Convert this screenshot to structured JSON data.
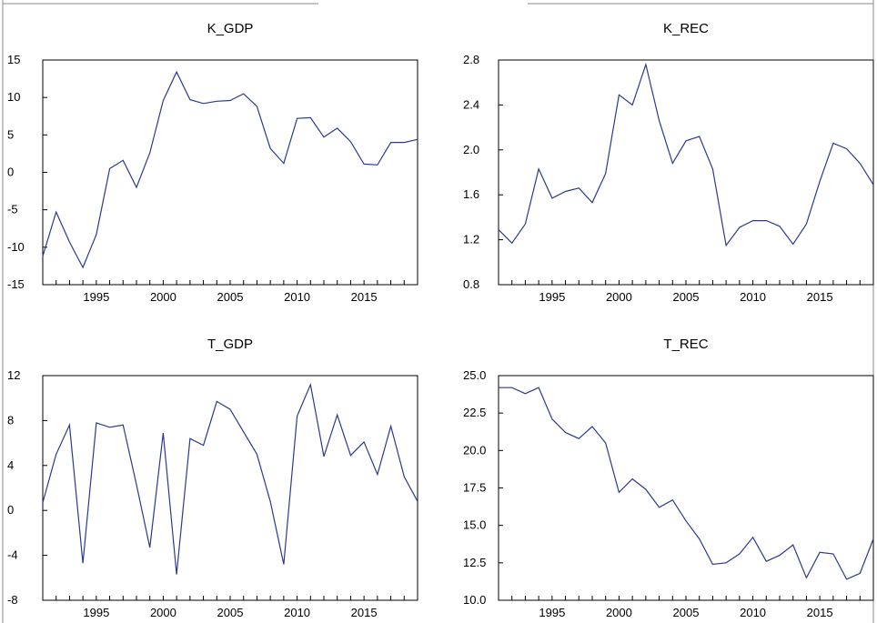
{
  "chart_data": [
    {
      "type": "line",
      "title": "K_GDP",
      "xlim": [
        1991,
        2019
      ],
      "ylim": [
        -15,
        15
      ],
      "yticks": [
        -15,
        -10,
        -5,
        0,
        5,
        10,
        15
      ],
      "yticklabels": [
        "-15",
        "-10",
        "-5",
        "0",
        "5",
        "10",
        "15"
      ],
      "xticks": [
        1995,
        2000,
        2005,
        2010,
        2015
      ],
      "xticklabels": [
        "1995",
        "2000",
        "2005",
        "2010",
        "2015"
      ],
      "series": [
        {
          "color": "#2b3a8e",
          "x": [
            1991,
            1992,
            1993,
            1994,
            1995,
            1996,
            1997,
            1998,
            1999,
            2000,
            2001,
            2002,
            2003,
            2004,
            2005,
            2006,
            2007,
            2008,
            2009,
            2010,
            2011,
            2012,
            2013,
            2014,
            2015,
            2016,
            2017,
            2018,
            2019
          ],
          "values": [
            -11.2,
            -5.3,
            -9.3,
            -12.7,
            -8.3,
            0.5,
            1.6,
            -2.0,
            2.6,
            9.6,
            13.4,
            9.7,
            9.2,
            9.5,
            9.6,
            10.5,
            8.8,
            3.2,
            1.2,
            7.2,
            7.3,
            4.7,
            5.9,
            4.1,
            1.1,
            1.0,
            4.0,
            4.0,
            4.4
          ]
        }
      ]
    },
    {
      "type": "line",
      "title": "K_REC",
      "xlim": [
        1991,
        2019
      ],
      "ylim": [
        0.8,
        2.8
      ],
      "yticks": [
        0.8,
        1.2,
        1.6,
        2.0,
        2.4,
        2.8
      ],
      "yticklabels": [
        "0.8",
        "1.2",
        "1.6",
        "2.0",
        "2.4",
        "2.8"
      ],
      "xticks": [
        1995,
        2000,
        2005,
        2010,
        2015
      ],
      "xticklabels": [
        "1995",
        "2000",
        "2005",
        "2010",
        "2015"
      ],
      "series": [
        {
          "color": "#2b3a8e",
          "x": [
            1991,
            1992,
            1993,
            1994,
            1995,
            1996,
            1997,
            1998,
            1999,
            2000,
            2001,
            2002,
            2003,
            2004,
            2005,
            2006,
            2007,
            2008,
            2009,
            2010,
            2011,
            2012,
            2013,
            2014,
            2015,
            2016,
            2017,
            2018,
            2019
          ],
          "values": [
            1.29,
            1.17,
            1.34,
            1.83,
            1.57,
            1.63,
            1.66,
            1.53,
            1.79,
            2.49,
            2.4,
            2.76,
            2.26,
            1.88,
            2.08,
            2.12,
            1.83,
            1.15,
            1.31,
            1.37,
            1.37,
            1.32,
            1.16,
            1.34,
            1.72,
            2.06,
            2.01,
            1.88,
            1.69
          ]
        }
      ]
    },
    {
      "type": "line",
      "title": "T_GDP",
      "xlim": [
        1991,
        2019
      ],
      "ylim": [
        -8,
        12
      ],
      "yticks": [
        -8,
        -4,
        0,
        4,
        8,
        12
      ],
      "yticklabels": [
        "-8",
        "-4",
        "0",
        "4",
        "8",
        "12"
      ],
      "xticks": [
        1995,
        2000,
        2005,
        2010,
        2015
      ],
      "xticklabels": [
        "1995",
        "2000",
        "2005",
        "2010",
        "2015"
      ],
      "series": [
        {
          "color": "#2b3a8e",
          "x": [
            1991,
            1992,
            1993,
            1994,
            1995,
            1996,
            1997,
            1998,
            1999,
            2000,
            2001,
            2002,
            2003,
            2004,
            2005,
            2006,
            2007,
            2008,
            2009,
            2010,
            2011,
            2012,
            2013,
            2014,
            2015,
            2016,
            2017,
            2018,
            2019
          ],
          "values": [
            0.7,
            5.0,
            7.6,
            -4.7,
            7.8,
            7.4,
            7.6,
            2.3,
            -3.3,
            6.9,
            -5.7,
            6.4,
            5.8,
            9.7,
            9.0,
            7.0,
            5.0,
            0.8,
            -4.8,
            8.4,
            11.2,
            4.8,
            8.5,
            4.9,
            6.1,
            3.2,
            7.5,
            3.0,
            0.8
          ]
        }
      ]
    },
    {
      "type": "line",
      "title": "T_REC",
      "xlim": [
        1991,
        2019
      ],
      "ylim": [
        10.0,
        25.0
      ],
      "yticks": [
        10.0,
        12.5,
        15.0,
        17.5,
        20.0,
        22.5,
        25.0
      ],
      "yticklabels": [
        "10.0",
        "12.5",
        "15.0",
        "17.5",
        "20.0",
        "22.5",
        "25.0"
      ],
      "xticks": [
        1995,
        2000,
        2005,
        2010,
        2015
      ],
      "xticklabels": [
        "1995",
        "2000",
        "2005",
        "2010",
        "2015"
      ],
      "series": [
        {
          "color": "#2b3a8e",
          "x": [
            1991,
            1992,
            1993,
            1994,
            1995,
            1996,
            1997,
            1998,
            1999,
            2000,
            2001,
            2002,
            2003,
            2004,
            2005,
            2006,
            2007,
            2008,
            2009,
            2010,
            2011,
            2012,
            2013,
            2014,
            2015,
            2016,
            2017,
            2018,
            2019
          ],
          "values": [
            24.2,
            24.2,
            23.8,
            24.2,
            22.1,
            21.2,
            20.8,
            21.6,
            20.5,
            17.2,
            18.1,
            17.4,
            16.2,
            16.7,
            15.3,
            14.1,
            12.4,
            12.5,
            13.1,
            14.2,
            12.6,
            13.0,
            13.7,
            11.5,
            13.2,
            13.1,
            11.4,
            11.8,
            14.1
          ]
        }
      ]
    }
  ]
}
